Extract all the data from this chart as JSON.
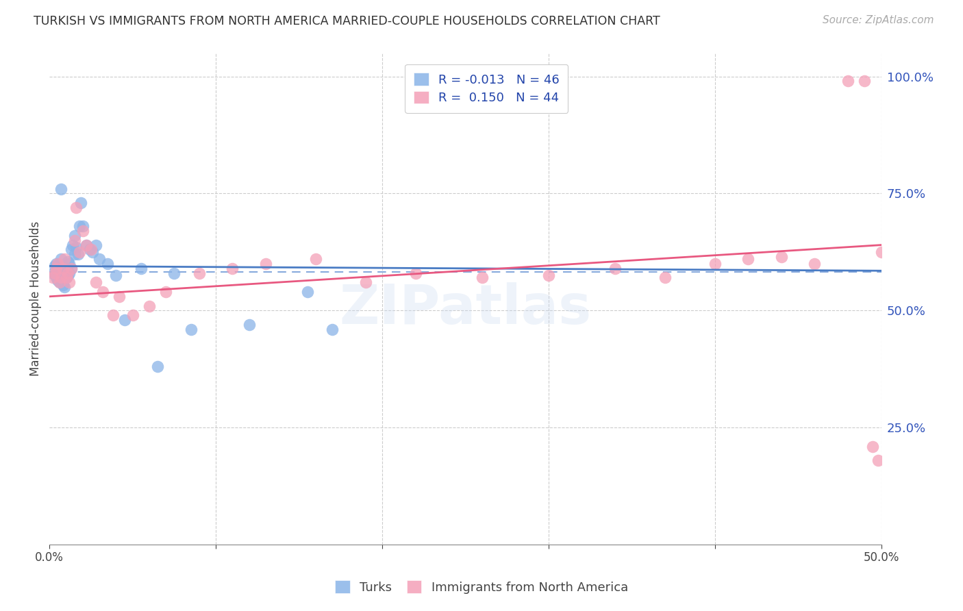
{
  "title": "TURKISH VS IMMIGRANTS FROM NORTH AMERICA MARRIED-COUPLE HOUSEHOLDS CORRELATION CHART",
  "source": "Source: ZipAtlas.com",
  "ylabel": "Married-couple Households",
  "xlim": [
    0.0,
    0.5
  ],
  "ylim": [
    0.0,
    1.05
  ],
  "legend_r1": "-0.013",
  "legend_n1": "46",
  "legend_r2": "0.150",
  "legend_n2": "44",
  "blue_color": "#8ab4e8",
  "pink_color": "#f4a0b8",
  "line_blue": "#4a7cc4",
  "line_pink": "#e85880",
  "dashed_blue": "#88aadd",
  "watermark": "ZIPatlas",
  "turks_x": [
    0.002,
    0.003,
    0.004,
    0.004,
    0.005,
    0.005,
    0.006,
    0.006,
    0.007,
    0.007,
    0.007,
    0.008,
    0.008,
    0.009,
    0.009,
    0.01,
    0.01,
    0.011,
    0.011,
    0.012,
    0.012,
    0.013,
    0.013,
    0.014,
    0.015,
    0.015,
    0.016,
    0.017,
    0.018,
    0.019,
    0.02,
    0.022,
    0.024,
    0.026,
    0.028,
    0.03,
    0.035,
    0.04,
    0.045,
    0.055,
    0.065,
    0.075,
    0.085,
    0.12,
    0.155,
    0.17
  ],
  "turks_y": [
    0.58,
    0.595,
    0.57,
    0.6,
    0.565,
    0.585,
    0.56,
    0.58,
    0.61,
    0.575,
    0.76,
    0.555,
    0.57,
    0.58,
    0.55,
    0.57,
    0.59,
    0.575,
    0.605,
    0.58,
    0.6,
    0.63,
    0.59,
    0.64,
    0.62,
    0.66,
    0.635,
    0.62,
    0.68,
    0.73,
    0.68,
    0.64,
    0.63,
    0.625,
    0.64,
    0.61,
    0.6,
    0.575,
    0.48,
    0.59,
    0.38,
    0.58,
    0.46,
    0.47,
    0.54,
    0.46
  ],
  "immigrants_x": [
    0.002,
    0.003,
    0.004,
    0.005,
    0.006,
    0.007,
    0.008,
    0.009,
    0.01,
    0.011,
    0.012,
    0.013,
    0.015,
    0.016,
    0.018,
    0.02,
    0.022,
    0.025,
    0.028,
    0.032,
    0.038,
    0.042,
    0.05,
    0.06,
    0.07,
    0.09,
    0.11,
    0.13,
    0.16,
    0.19,
    0.22,
    0.26,
    0.3,
    0.34,
    0.37,
    0.4,
    0.42,
    0.44,
    0.46,
    0.48,
    0.49,
    0.495,
    0.498,
    0.5
  ],
  "immigrants_y": [
    0.57,
    0.58,
    0.59,
    0.6,
    0.56,
    0.57,
    0.59,
    0.61,
    0.57,
    0.58,
    0.56,
    0.59,
    0.65,
    0.72,
    0.625,
    0.67,
    0.64,
    0.63,
    0.56,
    0.54,
    0.49,
    0.53,
    0.49,
    0.51,
    0.54,
    0.58,
    0.59,
    0.6,
    0.61,
    0.56,
    0.58,
    0.57,
    0.575,
    0.59,
    0.57,
    0.6,
    0.61,
    0.615,
    0.6,
    0.99,
    0.99,
    0.21,
    0.18,
    0.625
  ]
}
